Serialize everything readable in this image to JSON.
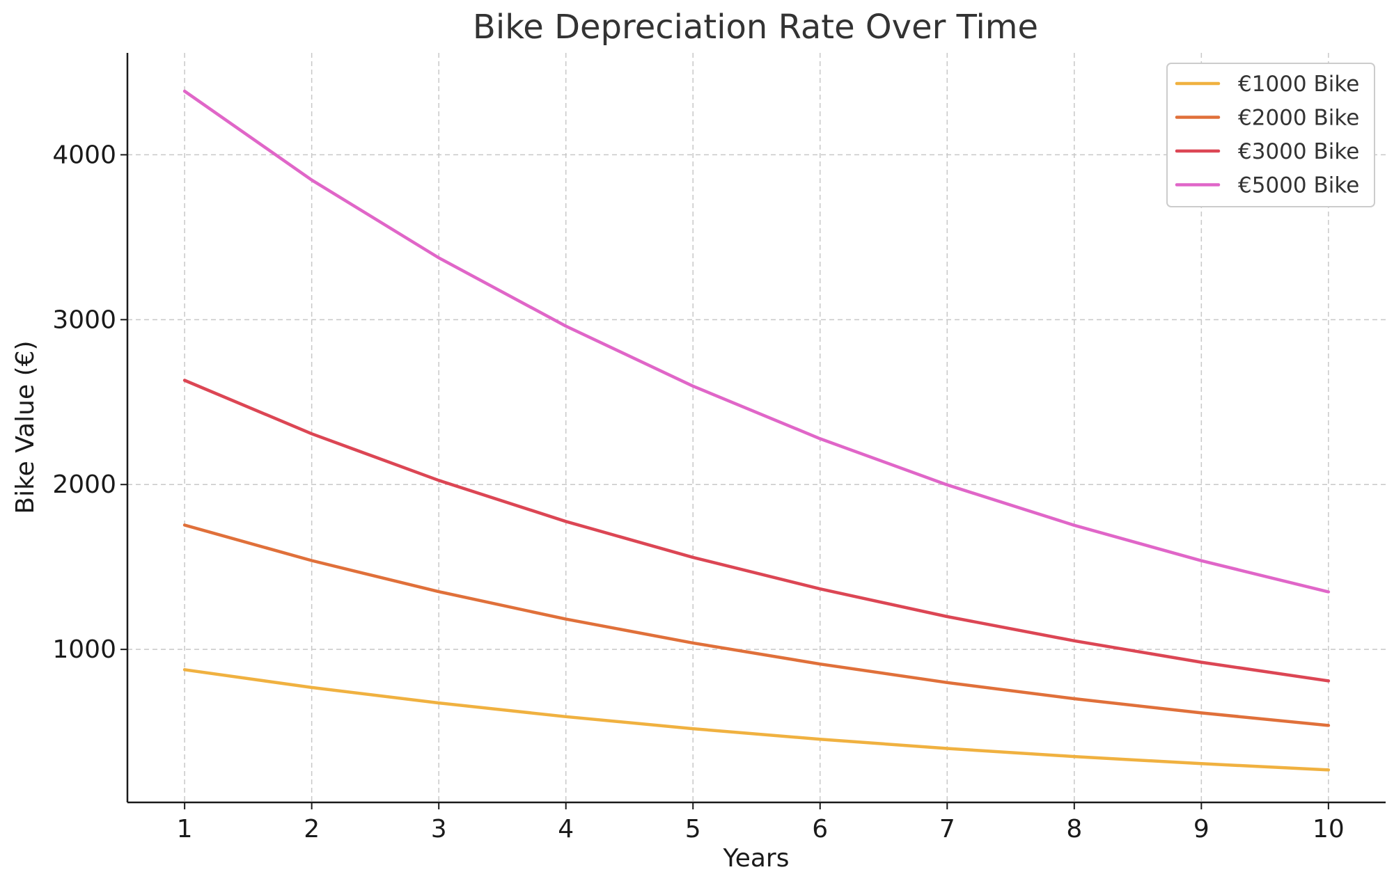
{
  "chart_data": {
    "type": "line",
    "title": "Bike Depreciation Rate Over Time",
    "xlabel": "Years",
    "ylabel": "Bike Value (€)",
    "x": [
      1,
      2,
      3,
      4,
      5,
      6,
      7,
      8,
      9,
      10
    ],
    "xlim": [
      0.55,
      10.45
    ],
    "ylim": [
      72,
      4618
    ],
    "xticks": [
      1,
      2,
      3,
      4,
      5,
      6,
      7,
      8,
      9,
      10
    ],
    "yticks": [
      1000,
      2000,
      3000,
      4000
    ],
    "grid": true,
    "legend_position": "top-right",
    "series": [
      {
        "name": "€1000 Bike",
        "color": "#f0b140",
        "values": [
          877,
          769,
          675,
          592,
          519,
          455,
          399,
          350,
          307,
          269
        ]
      },
      {
        "name": "€2000 Bike",
        "color": "#e0703a",
        "values": [
          1754,
          1539,
          1350,
          1184,
          1039,
          911,
          799,
          701,
          615,
          539
        ]
      },
      {
        "name": "€3000 Bike",
        "color": "#dc4654",
        "values": [
          2632,
          2308,
          2025,
          1776,
          1558,
          1367,
          1199,
          1052,
          922,
          809
        ]
      },
      {
        "name": "€5000 Bike",
        "color": "#e066c8",
        "values": [
          4386,
          3847,
          3375,
          2961,
          2597,
          2278,
          1998,
          1753,
          1538,
          1349
        ]
      }
    ]
  }
}
